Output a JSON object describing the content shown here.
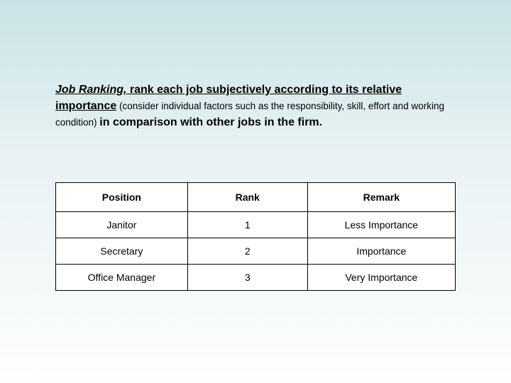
{
  "intro": {
    "term": "Job Ranking,",
    "part1": " rank each job subjectively according to its relative",
    "part2": "importance",
    "sub": " (consider individual factors such as the responsibility, skill, effort and working condition) ",
    "part3": "in comparison with other jobs in the firm."
  },
  "table": {
    "columns": [
      "Position",
      "Rank",
      "Remark"
    ],
    "rows": [
      [
        "Janitor",
        "1",
        "Less Importance"
      ],
      [
        "Secretary",
        "2",
        "Importance"
      ],
      [
        "Office Manager",
        "3",
        "Very Importance"
      ]
    ],
    "column_widths": [
      "33%",
      "30%",
      "37%"
    ],
    "border_color": "#000000",
    "background_color": "#ffffff",
    "header_fontsize": 14,
    "cell_fontsize": 14
  },
  "page_background": {
    "gradient_top": "#c8e3e6",
    "gradient_mid": "#e8f2f3",
    "gradient_bottom": "#fefefe"
  }
}
